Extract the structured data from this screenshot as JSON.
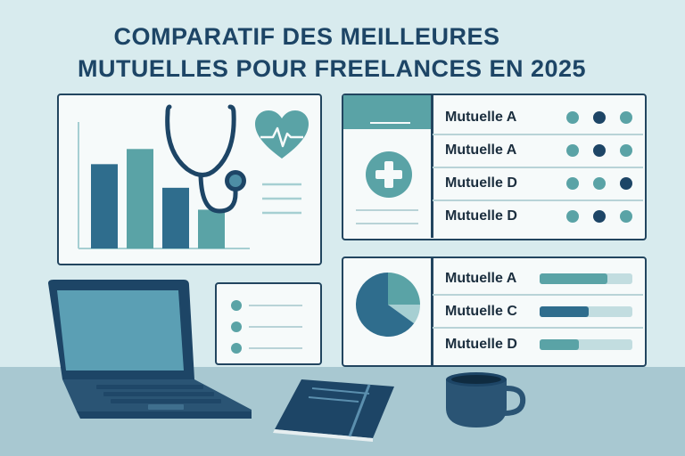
{
  "title": {
    "line1": "COMPARATIF DES MEILLEURES",
    "line2": "MUTUELLES POUR FREELANCES EN 2025"
  },
  "colors": {
    "navy": "#1d4566",
    "teal": "#5aa3a6",
    "dark_teal": "#2f6d8d",
    "light_teal": "#a6cfd2",
    "background": "#d8ebee",
    "desk": "#a8c8d1"
  },
  "chart_data": {
    "type": "bar",
    "categories": [
      "",
      "",
      "",
      ""
    ],
    "values": [
      100,
      118,
      72,
      46
    ],
    "ylim": [
      0,
      150
    ]
  },
  "rating_table": {
    "rows": [
      {
        "label": "Mutuelle A",
        "dots": [
          "teal",
          "navy",
          "teal"
        ]
      },
      {
        "label": "Mutuelle A",
        "dots": [
          "teal",
          "navy",
          "teal"
        ]
      },
      {
        "label": "Mutuelle D",
        "dots": [
          "teal",
          "teal",
          "navy"
        ]
      },
      {
        "label": "Mutuelle D",
        "dots": [
          "teal",
          "navy",
          "teal"
        ]
      }
    ]
  },
  "bar_table": {
    "rows": [
      {
        "label": "Mutuelle A",
        "fill": 0.73,
        "color": "teal"
      },
      {
        "label": "Mutuelle C",
        "fill": 0.53,
        "color": "dark_teal"
      },
      {
        "label": "Mutuelle D",
        "fill": 0.42,
        "color": "teal"
      }
    ]
  },
  "pie": {
    "slices": [
      0.25,
      0.1,
      0.65
    ]
  },
  "icons": [
    "stethoscope-icon",
    "heart-pulse-icon",
    "medical-cross-icon",
    "laptop-icon",
    "notebook-icon",
    "coffee-mug-icon",
    "pie-chart-icon"
  ]
}
